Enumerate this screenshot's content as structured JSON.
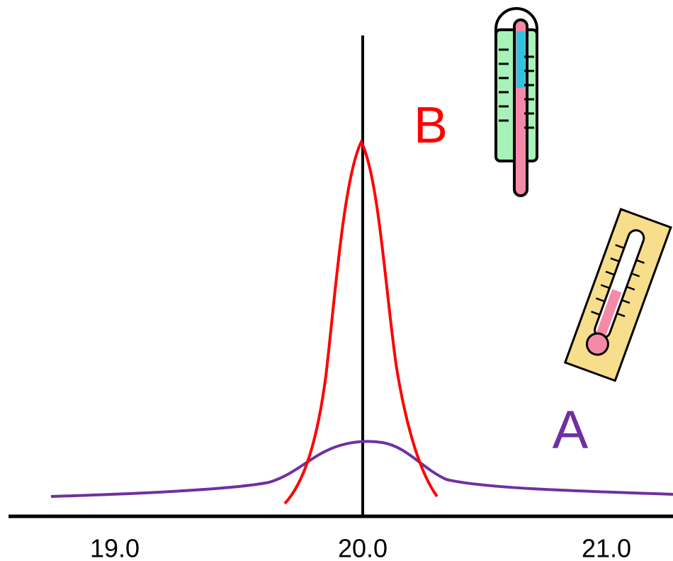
{
  "axis": {
    "ticks": [
      "19.0",
      "20.0",
      "21.0"
    ]
  },
  "curves": [
    {
      "label": "B"
    },
    {
      "label": "A"
    }
  ]
}
